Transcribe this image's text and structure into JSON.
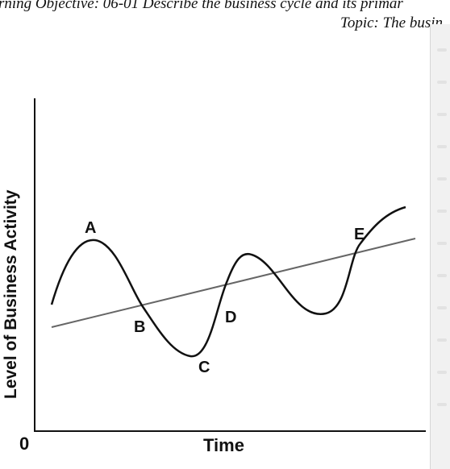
{
  "header": {
    "line1": "rning Objective: 06-01 Describe the business cycle and its primar",
    "line2": "Topic: The busin"
  },
  "diagram": {
    "y_axis_label": "Level of Business Activity",
    "x_axis_label": "Time",
    "origin_label": "0",
    "points": {
      "A": "A",
      "B": "B",
      "C": "C",
      "D": "D",
      "E": "E"
    },
    "colors": {
      "axis": "#111111",
      "cycle_curve": "#111111",
      "trend_line": "#666666"
    }
  }
}
